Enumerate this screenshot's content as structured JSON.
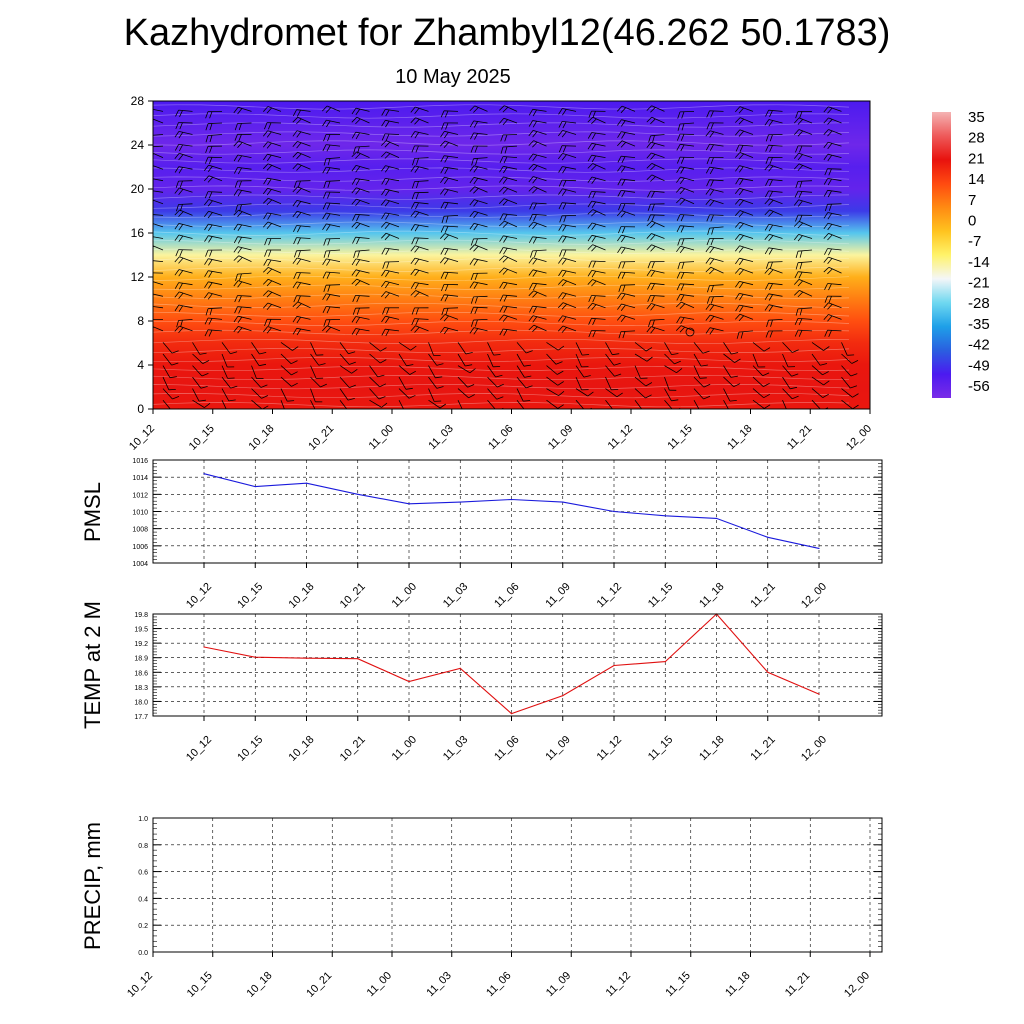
{
  "header": {
    "title": "Kazhydromet for Zhambyl12(46.262 50.1783)",
    "date": "10 May 2025"
  },
  "time_labels": [
    "10_12",
    "10_15",
    "10_18",
    "10_21",
    "11_00",
    "11_03",
    "11_06",
    "11_09",
    "11_12",
    "11_15",
    "11_18",
    "11_21",
    "12_00"
  ],
  "chart_data": [
    {
      "type": "heatmap",
      "name": "temperature_profile",
      "x": [
        "10_12",
        "10_15",
        "10_18",
        "10_21",
        "11_00",
        "11_03",
        "11_06",
        "11_09",
        "11_12",
        "11_15",
        "11_18",
        "11_21",
        "12_00"
      ],
      "ylim": [
        0,
        28
      ],
      "yticks": [
        0,
        4,
        8,
        12,
        16,
        20,
        24,
        28
      ],
      "profile_levels": [
        0,
        2,
        4,
        6,
        8,
        10,
        12,
        14,
        16,
        18,
        20,
        22,
        24,
        26,
        28
      ],
      "profile_values": [
        21,
        22,
        21,
        18,
        13,
        7,
        0,
        -14,
        -30,
        -48,
        -56,
        -54,
        -58,
        -55,
        -52
      ],
      "colorbar_labels": [
        "35",
        "28",
        "21",
        "14",
        "7",
        "0",
        "-7",
        "-14",
        "-21",
        "-28",
        "-35",
        "-42",
        "-49",
        "-56"
      ],
      "colors": {
        "ramp": [
          "#7a2be8",
          "#4b1af0",
          "#2a5fe0",
          "#1ea0e8",
          "#6fd8f0",
          "#f4f6f8",
          "#fff36a",
          "#ffc31f",
          "#ff8a12",
          "#ff4a10",
          "#e8120e",
          "#ee5a5a",
          "#f4b3b3"
        ],
        "wind_barb": "#000000"
      },
      "overlay": "wind barbs"
    },
    {
      "type": "line",
      "name": "pmsl",
      "ylabel": "PMSL",
      "x": [
        "10_12",
        "10_15",
        "10_18",
        "10_21",
        "11_00",
        "11_03",
        "11_06",
        "11_09",
        "11_12",
        "11_15",
        "11_18",
        "11_21",
        "12_00"
      ],
      "values": [
        1014.4,
        1012.9,
        1013.3,
        1012.0,
        1010.9,
        1011.1,
        1011.4,
        1011.1,
        1010.0,
        1009.5,
        1009.2,
        1007.0,
        1005.7
      ],
      "ylim": [
        1004,
        1016
      ],
      "yticks": [
        "1004",
        "1006",
        "1008",
        "1010",
        "1012",
        "1014",
        "1016"
      ],
      "color": "#1a1adc",
      "grid": true
    },
    {
      "type": "line",
      "name": "temp_2m",
      "ylabel": "TEMP at 2 M",
      "x": [
        "10_12",
        "10_15",
        "10_18",
        "10_21",
        "11_00",
        "11_03",
        "11_06",
        "11_09",
        "11_12",
        "11_15",
        "11_18",
        "11_21",
        "12_00"
      ],
      "values": [
        19.12,
        18.91,
        18.89,
        18.88,
        18.41,
        18.68,
        17.75,
        18.12,
        18.74,
        18.82,
        19.8,
        18.6,
        18.15
      ],
      "ylim": [
        17.7,
        19.8
      ],
      "yticks": [
        "17.7",
        "18.0",
        "18.3",
        "18.6",
        "18.9",
        "19.2",
        "19.5",
        "19.8"
      ],
      "color": "#e01010",
      "grid": true
    },
    {
      "type": "line",
      "name": "precip",
      "ylabel": "PRECIP, mm",
      "x": [
        "10_12",
        "10_15",
        "10_18",
        "10_21",
        "11_00",
        "11_03",
        "11_06",
        "11_09",
        "11_12",
        "11_15",
        "11_18",
        "11_21",
        "12_00"
      ],
      "values": [
        0,
        0,
        0,
        0,
        0,
        0,
        0,
        0,
        0,
        0,
        0,
        0,
        0
      ],
      "ylim": [
        0,
        1
      ],
      "yticks": [
        "0.0",
        "0.2",
        "0.4",
        "0.6",
        "0.8",
        "1.0"
      ],
      "color": "#1a7a1a",
      "grid": true
    }
  ]
}
